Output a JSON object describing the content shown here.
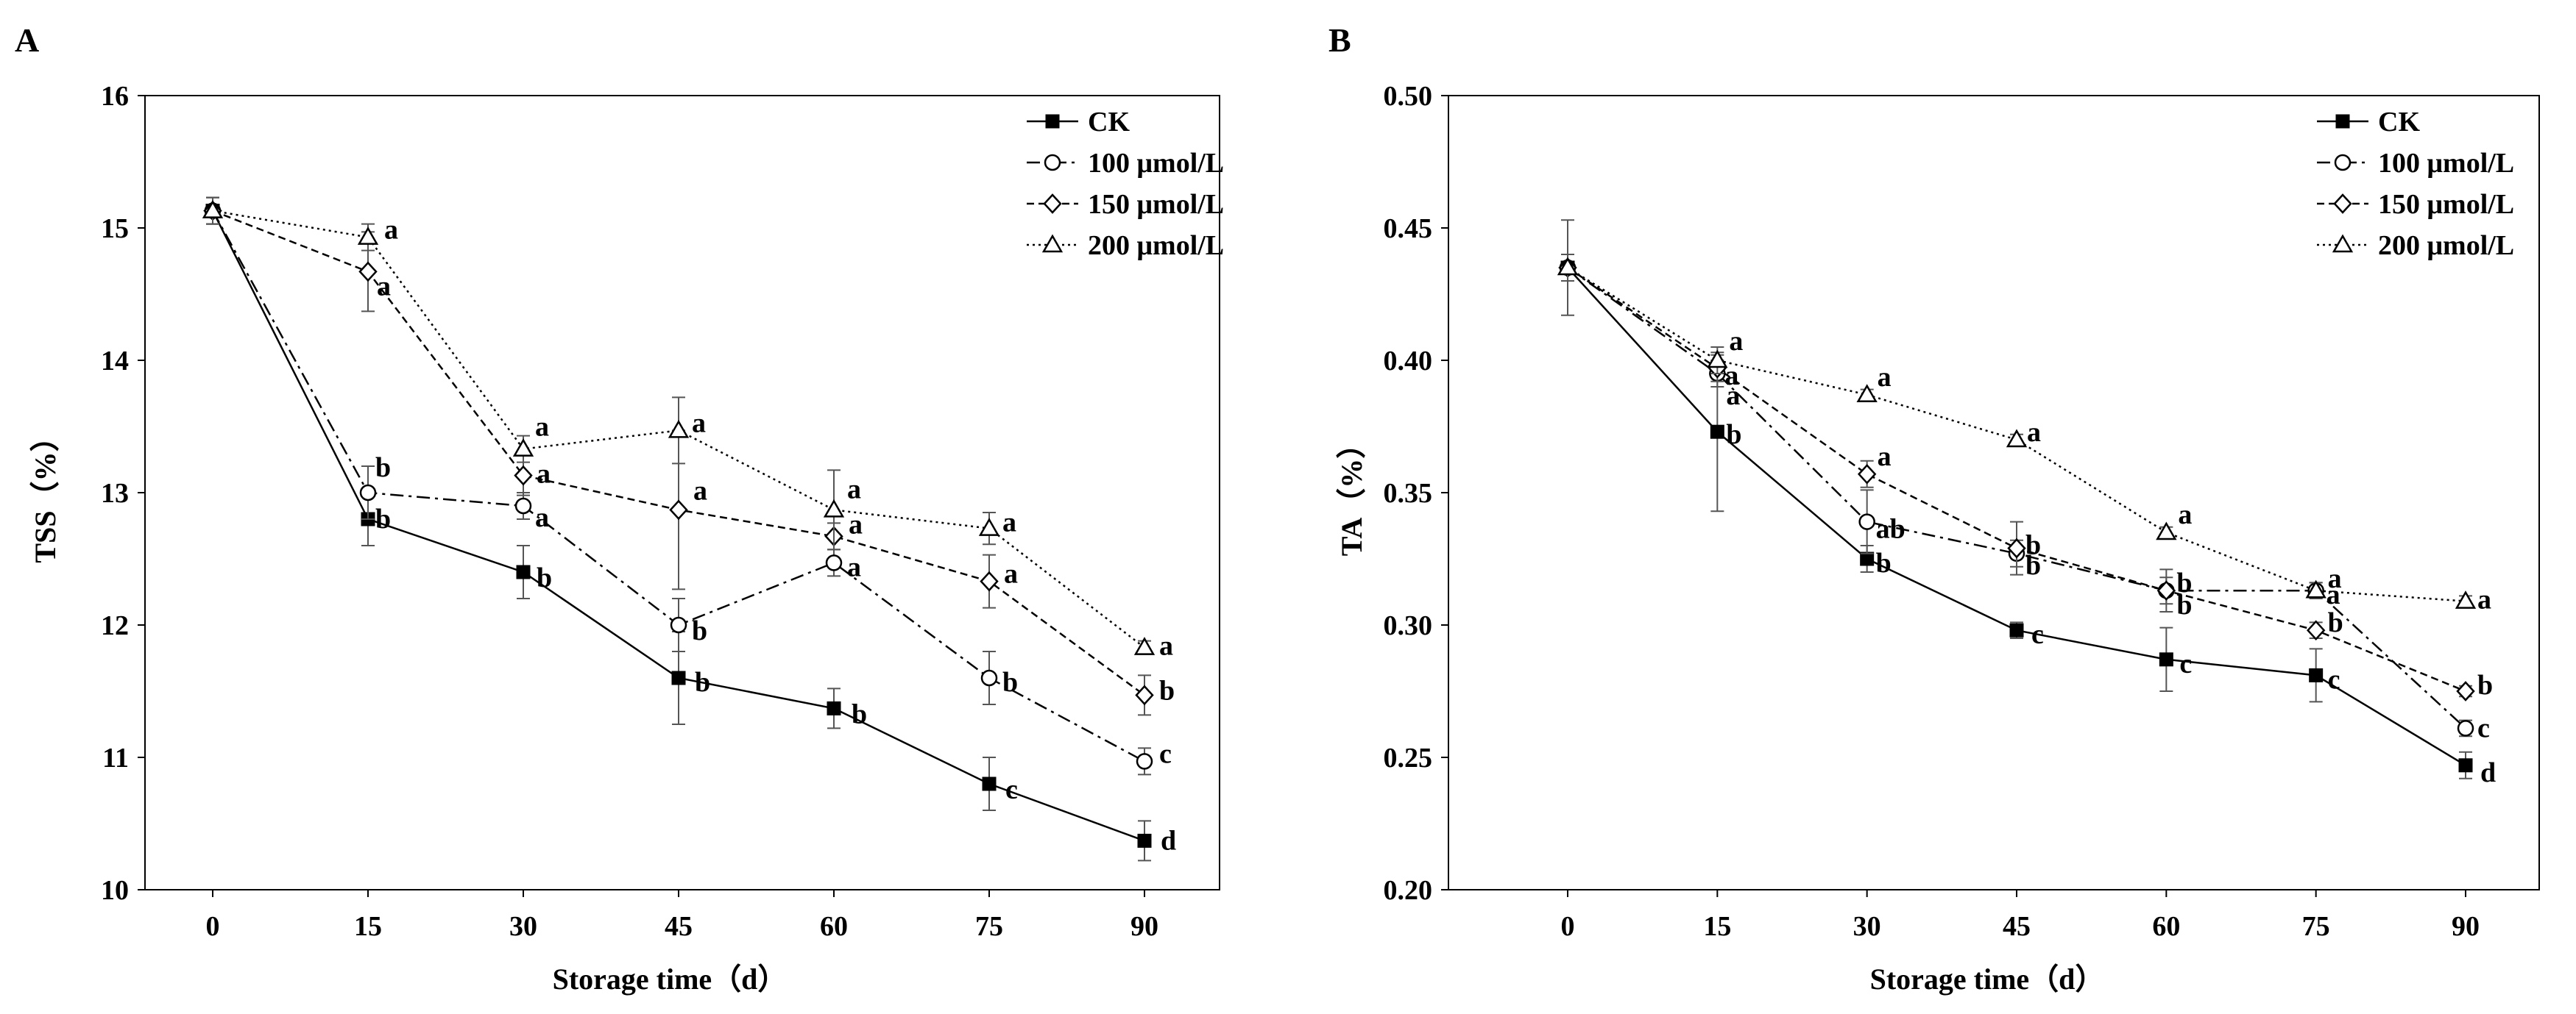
{
  "chart_data": [
    {
      "type": "line",
      "panel_label": "A",
      "title": "",
      "xlabel": "Storage time（d）",
      "ylabel": "TSS（%）",
      "x": [
        0,
        15,
        30,
        45,
        60,
        75,
        90
      ],
      "xticks": [
        "0",
        "15",
        "30",
        "45",
        "60",
        "75",
        "90"
      ],
      "ylim": [
        10,
        16
      ],
      "yticks": [
        "10",
        "11",
        "12",
        "13",
        "14",
        "15",
        "16"
      ],
      "legend_position": "top-right",
      "series": [
        {
          "name": "CK",
          "marker": "filled-square",
          "line": "solid",
          "values": [
            15.13,
            12.8,
            12.4,
            11.6,
            11.37,
            10.8,
            10.37
          ],
          "errors": [
            0.1,
            0.2,
            0.2,
            0.35,
            0.15,
            0.2,
            0.15
          ],
          "letters": [
            "",
            "b",
            "b",
            "b",
            "b",
            "c",
            "d"
          ]
        },
        {
          "name": "100 μmol/L",
          "marker": "open-circle",
          "line": "dash-dot",
          "values": [
            15.13,
            13.0,
            12.9,
            12.0,
            12.47,
            11.6,
            10.97
          ],
          "errors": [
            0.1,
            0.2,
            0.1,
            0.2,
            0.1,
            0.2,
            0.1
          ],
          "letters": [
            "",
            "b",
            "a",
            "b",
            "a",
            "b",
            "c"
          ]
        },
        {
          "name": "150 μmol/L",
          "marker": "open-diamond",
          "line": "dashed",
          "values": [
            15.13,
            14.67,
            13.13,
            12.87,
            12.67,
            12.33,
            11.47
          ],
          "errors": [
            0.1,
            0.3,
            0.15,
            0.6,
            0.1,
            0.2,
            0.15
          ],
          "letters": [
            "",
            "a",
            "a",
            "a",
            "a",
            "a",
            "b"
          ]
        },
        {
          "name": "200 μmol/L",
          "marker": "open-triangle",
          "line": "dotted",
          "values": [
            15.13,
            14.93,
            13.33,
            13.47,
            12.87,
            12.73,
            11.83
          ],
          "errors": [
            0.1,
            0.1,
            0.1,
            0.25,
            0.3,
            0.12,
            0.05
          ],
          "letters": [
            "",
            "a",
            "a",
            "a",
            "a",
            "a",
            "a"
          ]
        }
      ]
    },
    {
      "type": "line",
      "panel_label": "B",
      "title": "",
      "xlabel": "Storage time（d）",
      "ylabel": "TA（%）",
      "x": [
        0,
        15,
        30,
        45,
        60,
        75,
        90
      ],
      "xticks": [
        "0",
        "15",
        "30",
        "45",
        "60",
        "75",
        "90"
      ],
      "ylim": [
        0.2,
        0.5
      ],
      "yticks": [
        "0.20",
        "0.25",
        "0.30",
        "0.35",
        "0.40",
        "0.45",
        "0.50"
      ],
      "legend_position": "top-right",
      "series": [
        {
          "name": "CK",
          "marker": "filled-square",
          "line": "solid",
          "values": [
            0.435,
            0.373,
            0.325,
            0.298,
            0.287,
            0.281,
            0.247
          ],
          "errors": [
            0.018,
            0.03,
            0.005,
            0.003,
            0.012,
            0.01,
            0.005
          ],
          "letters": [
            "",
            "b",
            "b",
            "c",
            "c",
            "c",
            "d"
          ]
        },
        {
          "name": "100 μmol/L",
          "marker": "open-circle",
          "line": "dash-dot",
          "values": [
            0.435,
            0.395,
            0.339,
            0.327,
            0.313,
            0.313,
            0.261
          ],
          "errors": [
            0.005,
            0.005,
            0.012,
            0.005,
            0.005,
            0.003,
            0.003
          ],
          "letters": [
            "",
            "a",
            "ab",
            "b",
            "b",
            "a",
            "c"
          ]
        },
        {
          "name": "150 μmol/L",
          "marker": "open-diamond",
          "line": "dashed",
          "values": [
            0.435,
            0.397,
            0.357,
            0.329,
            0.313,
            0.298,
            0.275
          ],
          "errors": [
            0.005,
            0.005,
            0.005,
            0.01,
            0.008,
            0.003,
            0.002
          ],
          "letters": [
            "",
            "a",
            "a",
            "b",
            "b",
            "b",
            "b"
          ]
        },
        {
          "name": "200 μmol/L",
          "marker": "open-triangle",
          "line": "dotted",
          "values": [
            0.435,
            0.4,
            0.387,
            0.37,
            0.335,
            0.313,
            0.309
          ],
          "errors": [
            0.005,
            0.005,
            0.002,
            0.002,
            0.002,
            0.003,
            0.002
          ],
          "letters": [
            "",
            "a",
            "a",
            "a",
            "a",
            "a",
            "a"
          ]
        }
      ]
    }
  ]
}
